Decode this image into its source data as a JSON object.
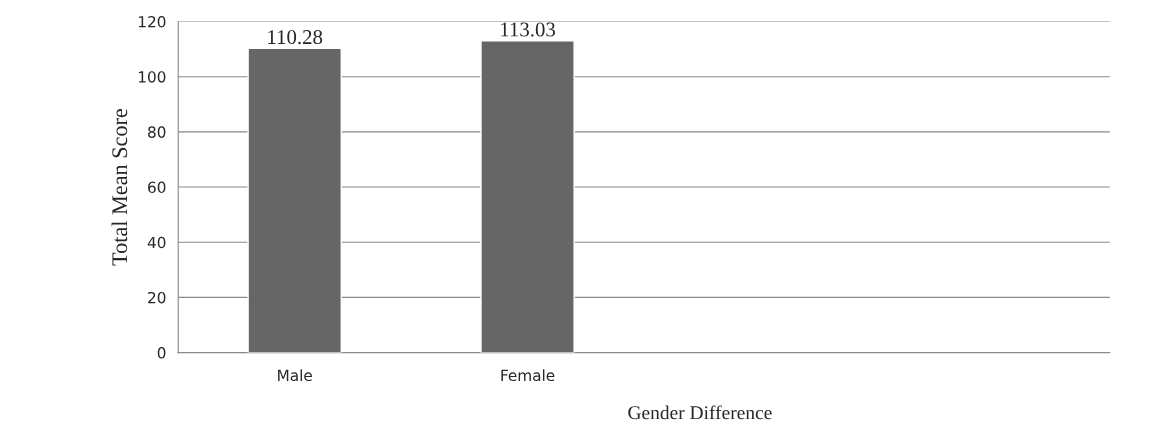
{
  "chart_data": {
    "type": "bar",
    "xlabel": "Gender Difference",
    "ylabel": "Total Mean Score",
    "categories": [
      "Male",
      "Female",
      null,
      null
    ],
    "values": [
      110.28,
      113.03,
      null,
      null
    ],
    "color": "#666666",
    "ylim": [
      0,
      120
    ],
    "yticks": [
      0,
      20,
      40,
      60,
      80,
      100,
      120
    ],
    "grid": "y",
    "data_labels": true
  }
}
